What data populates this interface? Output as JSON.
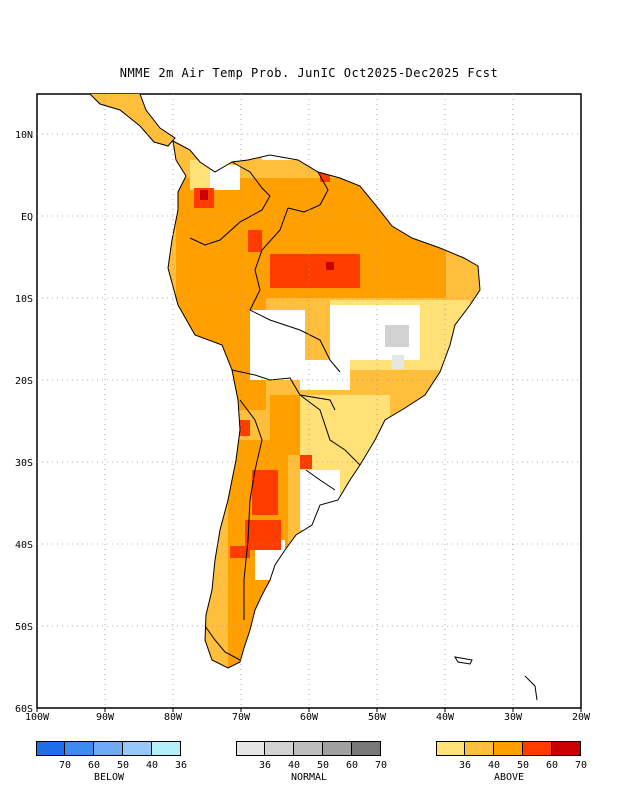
{
  "title": "NMME 2m Air Temp Prob. JunIC  Oct2025-Dec2025 Fcst",
  "axes": {
    "lon_labels": [
      "100W",
      "90W",
      "80W",
      "70W",
      "60W",
      "50W",
      "40W",
      "30W",
      "20W"
    ],
    "lat_labels": [
      "10N",
      "EQ",
      "10S",
      "20S",
      "30S",
      "40S",
      "50S",
      "60S"
    ]
  },
  "legend": {
    "below": {
      "label": "BELOW",
      "ticks": [
        "70",
        "60",
        "50",
        "40",
        "36"
      ],
      "colors": [
        "#1e6ee8",
        "#3c8cf0",
        "#6eaaf5",
        "#96c8f8",
        "#b4f0fa"
      ]
    },
    "normal": {
      "label": "NORMAL",
      "ticks": [
        "36",
        "40",
        "50",
        "60",
        "70"
      ],
      "colors": [
        "#e6e6e6",
        "#d2d2d2",
        "#bebebe",
        "#a0a0a0",
        "#787878"
      ]
    },
    "above": {
      "label": "ABOVE",
      "ticks": [
        "36",
        "40",
        "50",
        "60",
        "70"
      ],
      "colors": [
        "#ffe178",
        "#ffbe3c",
        "#ffa000",
        "#ff3c00",
        "#c80000"
      ]
    }
  },
  "map_data": {
    "region": "South America",
    "extent": {
      "lon": [
        -100,
        -20
      ],
      "lat": [
        -60,
        15
      ]
    },
    "dominant_category": "above"
  }
}
